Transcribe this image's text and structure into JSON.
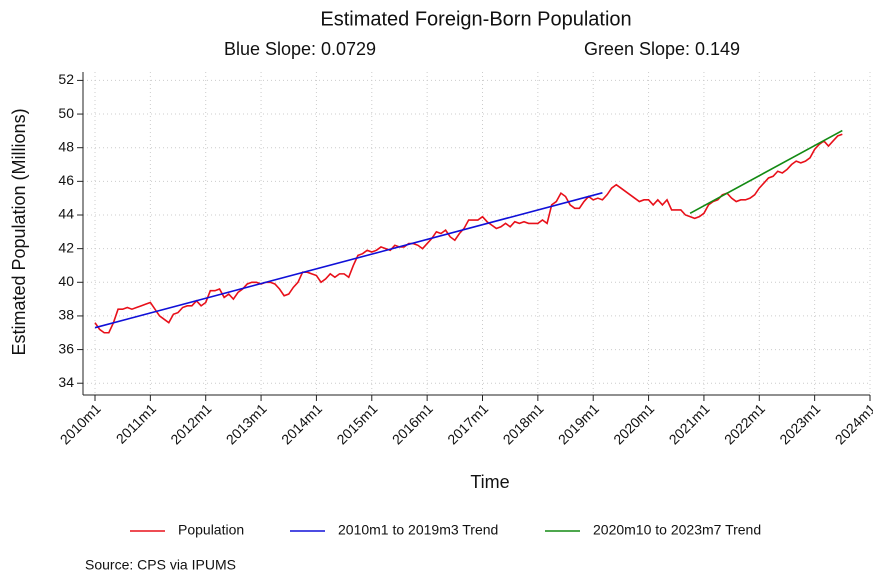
{
  "chart_data": {
    "type": "line",
    "title": "Estimated Foreign-Born Population",
    "subtitles": [
      "Blue Slope: 0.0729",
      "Green Slope: 0.149"
    ],
    "x_label": "Time",
    "y_label": "Estimated Population (Millions)",
    "source": "Source: CPS via IPUMS",
    "xlim": [
      597.4,
      768
    ],
    "ylim": [
      33.3,
      52.5
    ],
    "xticks": [
      {
        "value": 600,
        "label": "2010m1"
      },
      {
        "value": 612,
        "label": "2011m1"
      },
      {
        "value": 624,
        "label": "2012m1"
      },
      {
        "value": 636,
        "label": "2013m1"
      },
      {
        "value": 648,
        "label": "2014m1"
      },
      {
        "value": 660,
        "label": "2015m1"
      },
      {
        "value": 672,
        "label": "2016m1"
      },
      {
        "value": 684,
        "label": "2017m1"
      },
      {
        "value": 696,
        "label": "2018m1"
      },
      {
        "value": 708,
        "label": "2019m1"
      },
      {
        "value": 720,
        "label": "2020m1"
      },
      {
        "value": 732,
        "label": "2021m1"
      },
      {
        "value": 744,
        "label": "2022m1"
      },
      {
        "value": 756,
        "label": "2023m1"
      },
      {
        "value": 768,
        "label": "2024m1"
      }
    ],
    "yticks": [
      34,
      36,
      38,
      40,
      42,
      44,
      46,
      48,
      50,
      52
    ],
    "grid": true,
    "series": [
      {
        "name": "Population",
        "color": "#e8101a",
        "x": [
          600,
          601,
          602,
          603,
          604,
          605,
          606,
          607,
          608,
          609,
          610,
          611,
          612,
          613,
          614,
          615,
          616,
          617,
          618,
          619,
          620,
          621,
          622,
          623,
          624,
          625,
          626,
          627,
          628,
          629,
          630,
          631,
          632,
          633,
          634,
          635,
          636,
          637,
          638,
          639,
          640,
          641,
          642,
          643,
          644,
          645,
          646,
          647,
          648,
          649,
          650,
          651,
          652,
          653,
          654,
          655,
          656,
          657,
          658,
          659,
          660,
          661,
          662,
          663,
          664,
          665,
          666,
          667,
          668,
          669,
          670,
          671,
          672,
          673,
          674,
          675,
          676,
          677,
          678,
          679,
          680,
          681,
          682,
          683,
          684,
          685,
          686,
          687,
          688,
          689,
          690,
          691,
          692,
          693,
          694,
          695,
          696,
          697,
          698,
          699,
          700,
          701,
          702,
          703,
          704,
          705,
          706,
          707,
          708,
          709,
          710,
          711,
          712,
          713,
          714,
          715,
          716,
          717,
          718,
          719,
          720,
          721,
          722,
          723,
          724,
          725,
          726,
          727,
          728,
          729,
          730,
          731,
          732,
          733,
          734,
          735,
          736,
          737,
          738,
          739,
          740,
          741,
          742,
          743,
          744,
          745,
          746,
          747,
          748,
          749,
          750,
          751,
          752,
          753,
          754,
          755,
          756,
          757,
          758,
          759,
          760,
          761,
          762
        ],
        "values": [
          37.6,
          37.2,
          37.0,
          37.0,
          37.6,
          38.4,
          38.4,
          38.5,
          38.4,
          38.5,
          38.6,
          38.7,
          38.8,
          38.4,
          38.0,
          37.8,
          37.6,
          38.1,
          38.2,
          38.5,
          38.6,
          38.6,
          38.9,
          38.6,
          38.8,
          39.5,
          39.5,
          39.6,
          39.1,
          39.3,
          39.0,
          39.4,
          39.6,
          39.9,
          40.0,
          40.0,
          39.9,
          40.0,
          40.0,
          39.9,
          39.6,
          39.2,
          39.3,
          39.7,
          40.0,
          40.6,
          40.6,
          40.5,
          40.4,
          40.0,
          40.2,
          40.5,
          40.3,
          40.5,
          40.5,
          40.3,
          41.0,
          41.6,
          41.7,
          41.9,
          41.8,
          41.9,
          42.1,
          42.0,
          41.9,
          42.2,
          42.1,
          42.1,
          42.3,
          42.3,
          42.2,
          42.0,
          42.3,
          42.6,
          43.0,
          42.9,
          43.1,
          42.7,
          42.5,
          42.9,
          43.2,
          43.7,
          43.7,
          43.7,
          43.9,
          43.6,
          43.4,
          43.2,
          43.3,
          43.5,
          43.3,
          43.6,
          43.5,
          43.6,
          43.5,
          43.5,
          43.5,
          43.7,
          43.5,
          44.6,
          44.8,
          45.3,
          45.1,
          44.6,
          44.4,
          44.4,
          44.8,
          45.1,
          44.9,
          45.0,
          44.9,
          45.2,
          45.6,
          45.8,
          45.6,
          45.4,
          45.2,
          45.0,
          44.8,
          44.9,
          44.9,
          44.6,
          44.9,
          44.6,
          44.9,
          44.3,
          44.3,
          44.3,
          44.0,
          43.9,
          43.8,
          43.9,
          44.1,
          44.6,
          44.8,
          44.9,
          45.2,
          45.3,
          45.0,
          44.8,
          44.9,
          44.9,
          45.0,
          45.2,
          45.6,
          45.9,
          46.2,
          46.3,
          46.6,
          46.5,
          46.7,
          47.0,
          47.2,
          47.1,
          47.2,
          47.4,
          47.9,
          48.2,
          48.4,
          48.1,
          48.4,
          48.7,
          48.8
        ]
      },
      {
        "name": "2010m1 to 2019m3 Trend",
        "color": "#1010d8",
        "x": [
          600,
          710
        ],
        "values": [
          37.3,
          45.32
        ]
      },
      {
        "name": "2020m10 to 2023m7 Trend",
        "color": "#138a13",
        "x": [
          729,
          762
        ],
        "values": [
          44.1,
          49.02
        ]
      }
    ]
  }
}
